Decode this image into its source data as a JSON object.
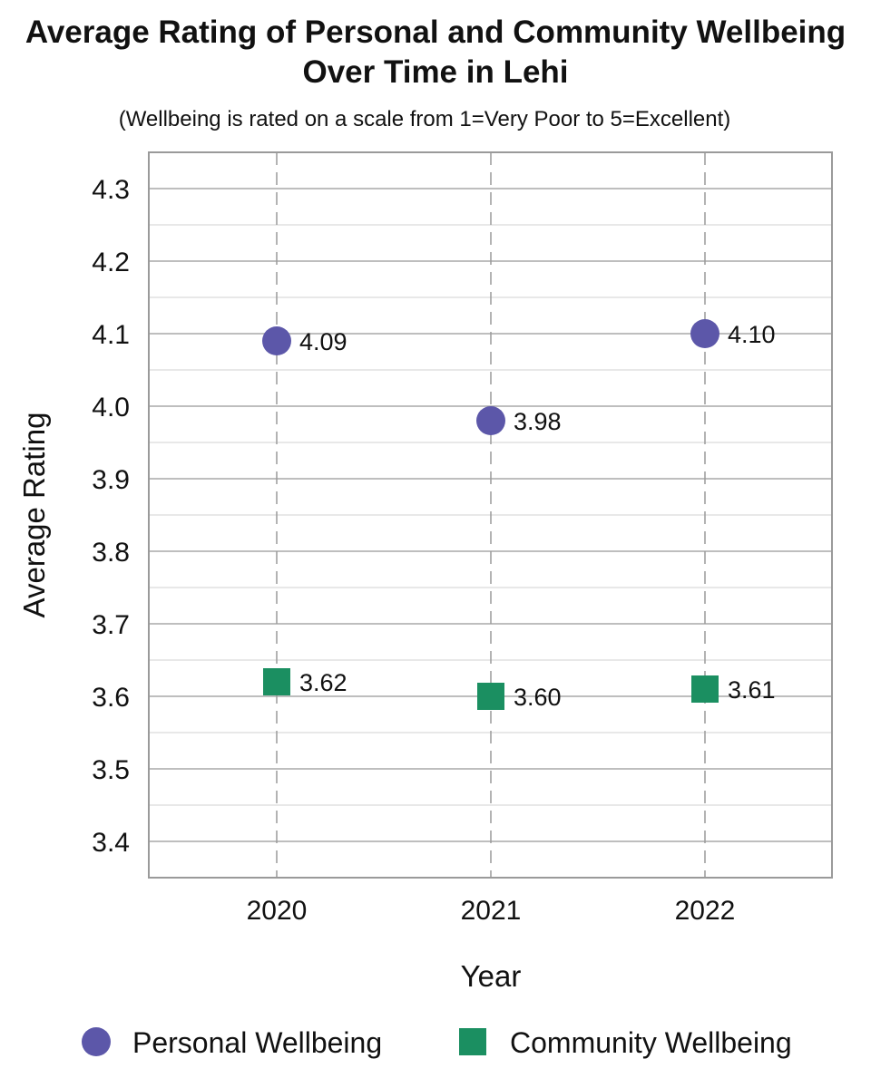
{
  "chart_data": {
    "type": "scatter",
    "title_lines": [
      "Average Rating of Personal and Community Wellbeing",
      "Over Time in Lehi"
    ],
    "subtitle": "(Wellbeing is rated on a scale from 1=Very Poor to 5=Excellent)",
    "xlabel": "Year",
    "ylabel": "Average Rating",
    "categories": [
      "2020",
      "2021",
      "2022"
    ],
    "y_ticks": [
      "3.4",
      "3.5",
      "3.6",
      "3.7",
      "3.8",
      "3.9",
      "4.0",
      "4.1",
      "4.2",
      "4.3"
    ],
    "ylim": [
      3.35,
      4.35
    ],
    "grid": true,
    "legend_position": "bottom",
    "series": [
      {
        "name": "Personal Wellbeing",
        "marker": "circle",
        "color": "#5c57a9",
        "values": [
          4.09,
          3.98,
          4.1
        ],
        "labels": [
          "4.09",
          "3.98",
          "4.10"
        ]
      },
      {
        "name": "Community Wellbeing",
        "marker": "square",
        "color": "#1b8f61",
        "values": [
          3.62,
          3.6,
          3.61
        ],
        "labels": [
          "3.62",
          "3.60",
          "3.61"
        ]
      }
    ]
  }
}
